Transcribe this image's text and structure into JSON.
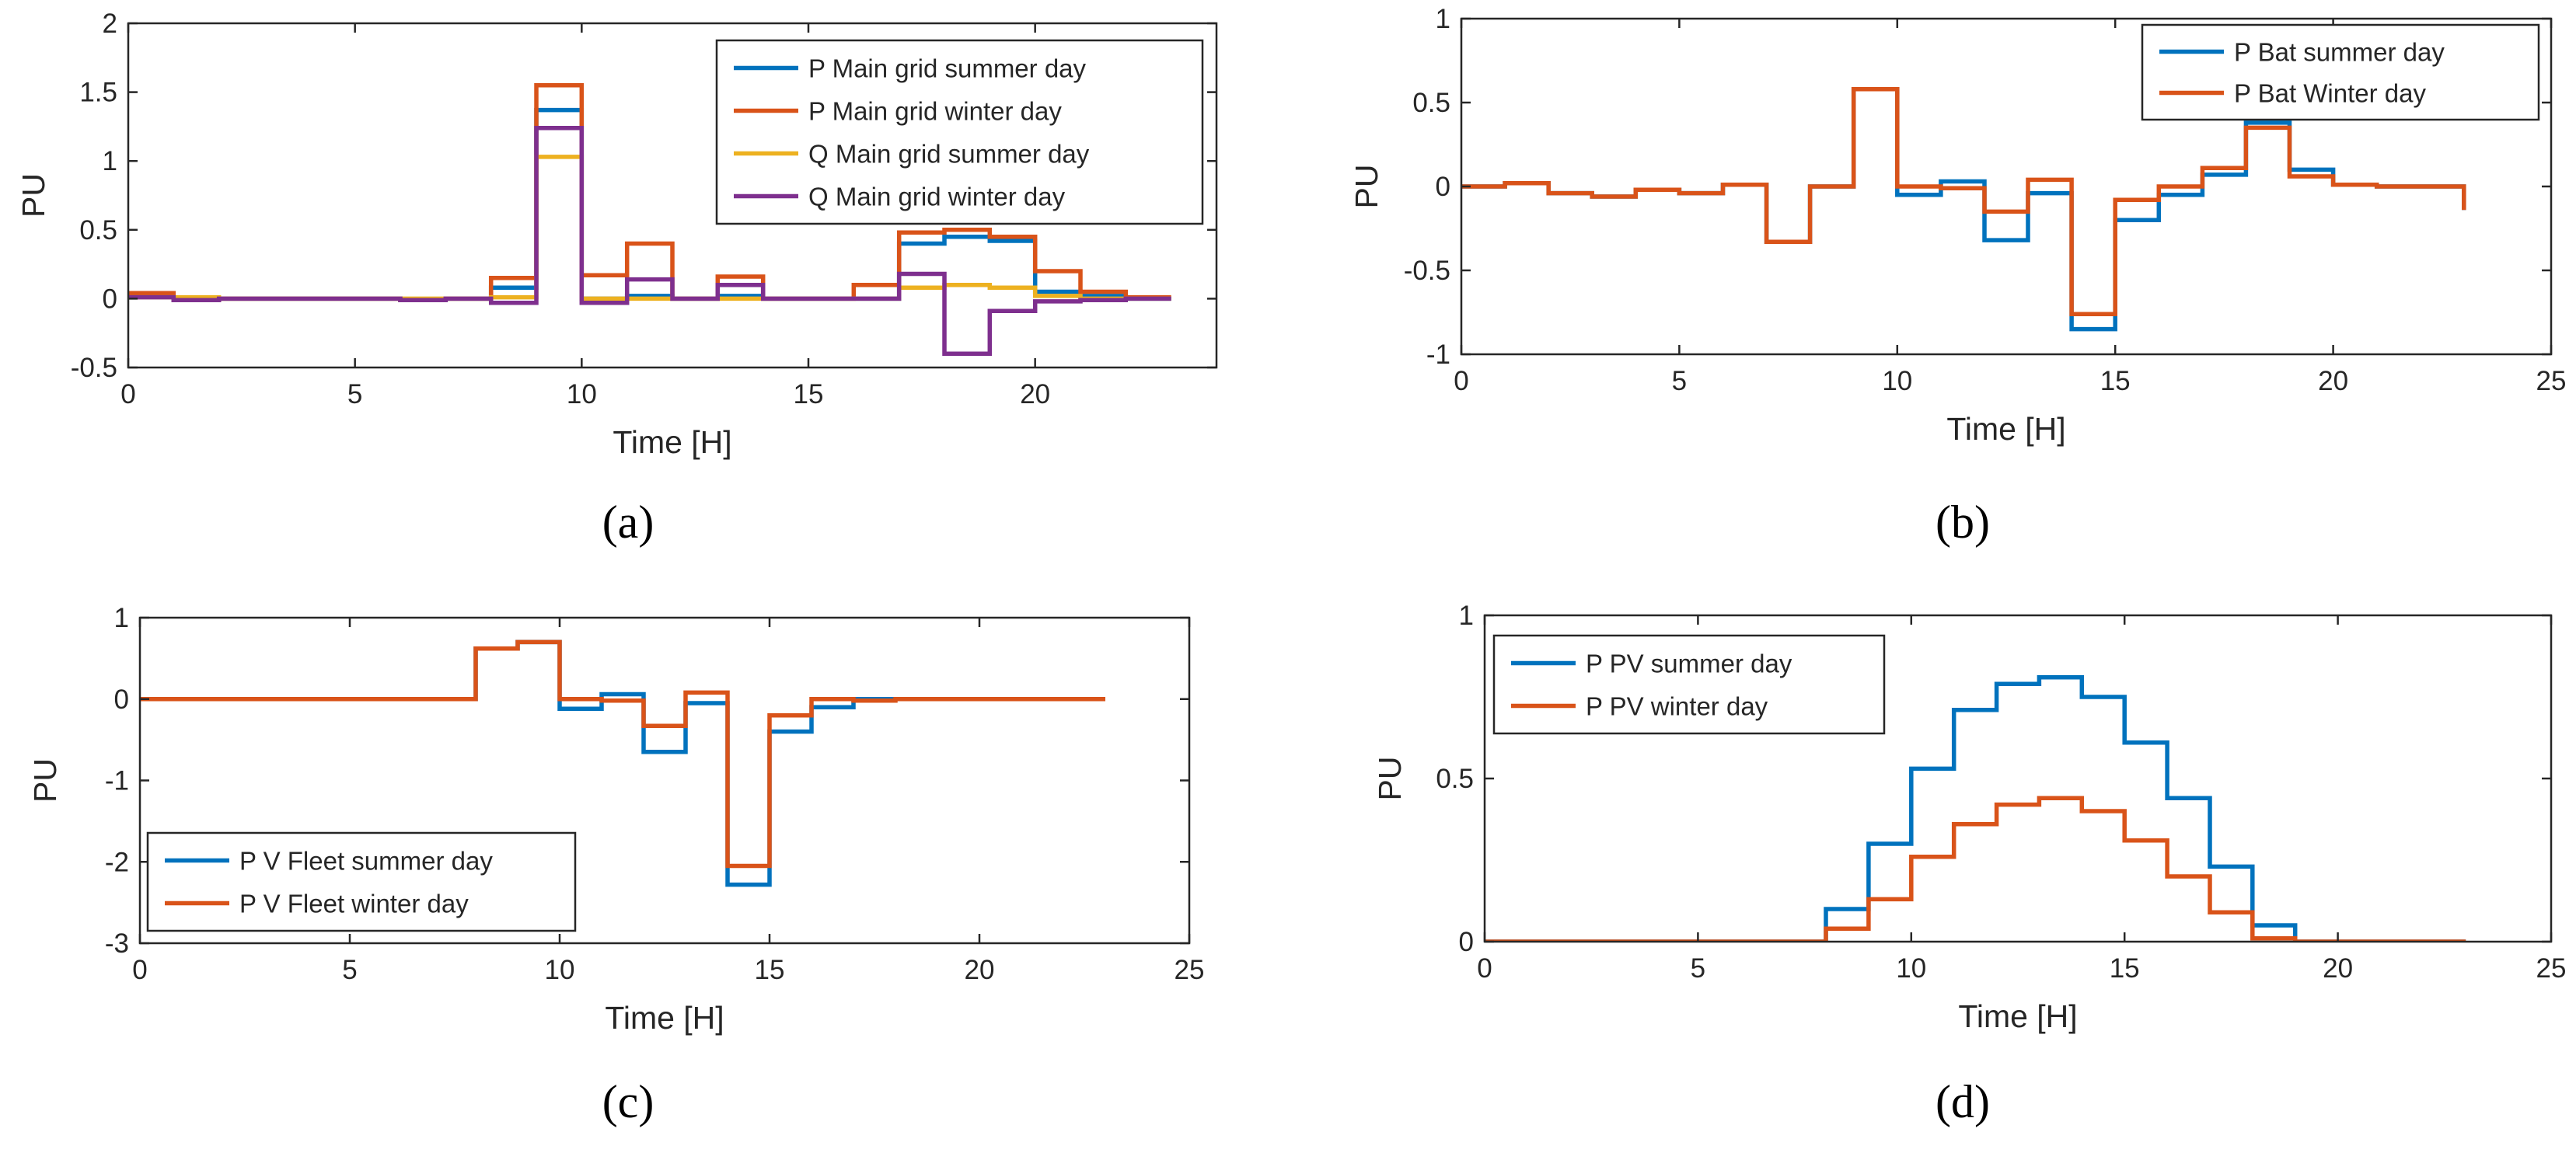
{
  "chart_data": [
    {
      "id": "a",
      "type": "line",
      "panel_label": "(a)",
      "title": "",
      "xlabel": "Time [H]",
      "ylabel": "PU",
      "xlim": [
        0,
        24
      ],
      "ylim": [
        -0.5,
        2
      ],
      "xticks": [
        0,
        5,
        10,
        15,
        20
      ],
      "xtick_labels": [
        "0",
        "5",
        "10",
        "15",
        "20"
      ],
      "yticks": [
        -0.5,
        0,
        0.5,
        1,
        1.5,
        2
      ],
      "ytick_labels": [
        "-0.5",
        "0",
        "0.5",
        "1",
        "1.5",
        "2"
      ],
      "grid": false,
      "legend_position": "top-right",
      "x": [
        0,
        1,
        2,
        3,
        4,
        5,
        6,
        7,
        8,
        9,
        10,
        11,
        12,
        13,
        14,
        15,
        16,
        17,
        18,
        19,
        20,
        21,
        22,
        23
      ],
      "series": [
        {
          "name": "P Main grid summer day",
          "color": "#0072BD",
          "values": [
            0.02,
            -0.01,
            0,
            0,
            0,
            0,
            -0.01,
            0,
            0.08,
            1.37,
            0,
            0.02,
            0,
            0.02,
            0,
            0,
            0,
            0.4,
            0.45,
            0.42,
            0.05,
            0.02,
            0,
            0
          ]
        },
        {
          "name": "P Main grid winter day",
          "color": "#D95319",
          "values": [
            0.04,
            -0.01,
            0,
            0,
            0,
            0,
            -0.01,
            0,
            0.15,
            1.55,
            0.17,
            0.4,
            0,
            0.16,
            0,
            0,
            0.1,
            0.48,
            0.5,
            0.45,
            0.2,
            0.05,
            0.01,
            0.01
          ]
        },
        {
          "name": "Q Main grid summer day",
          "color": "#EDB120",
          "values": [
            0.01,
            0.01,
            0,
            0,
            0,
            0,
            0,
            0,
            0.01,
            1.03,
            0,
            0,
            0,
            0,
            0,
            0,
            0,
            0.08,
            0.1,
            0.08,
            0.02,
            0,
            0,
            0
          ]
        },
        {
          "name": "Q Main grid winter day",
          "color": "#7E2F8E",
          "values": [
            0.01,
            -0.01,
            0,
            0,
            0,
            0,
            -0.01,
            0,
            -0.03,
            1.24,
            -0.03,
            0.14,
            0,
            0.1,
            0,
            0,
            0,
            0.18,
            -0.4,
            -0.09,
            -0.02,
            -0.01,
            0,
            0
          ]
        }
      ]
    },
    {
      "id": "b",
      "type": "line",
      "panel_label": "(b)",
      "title": "",
      "xlabel": "Time [H]",
      "ylabel": "PU",
      "xlim": [
        0,
        25
      ],
      "ylim": [
        -1,
        1
      ],
      "xticks": [
        0,
        5,
        10,
        15,
        20,
        25
      ],
      "xtick_labels": [
        "0",
        "5",
        "10",
        "15",
        "20",
        "25"
      ],
      "yticks": [
        -1,
        -0.5,
        0,
        0.5,
        1
      ],
      "ytick_labels": [
        "-1",
        "-0.5",
        "0",
        "0.5",
        "1"
      ],
      "grid": false,
      "legend_position": "top-right",
      "x": [
        0,
        1,
        2,
        3,
        4,
        5,
        6,
        7,
        8,
        9,
        10,
        11,
        12,
        13,
        14,
        15,
        16,
        17,
        18,
        19,
        20,
        21,
        22,
        23
      ],
      "series": [
        {
          "name": "P Bat summer day",
          "color": "#0072BD",
          "values": [
            0,
            0.02,
            -0.04,
            -0.06,
            -0.02,
            -0.04,
            0.01,
            -0.33,
            0,
            0.58,
            -0.05,
            0.03,
            -0.32,
            -0.04,
            -0.85,
            -0.2,
            -0.05,
            0.07,
            0.38,
            0.1,
            0.01,
            0,
            0,
            -0.14
          ]
        },
        {
          "name": "P Bat Winter day",
          "color": "#D95319",
          "values": [
            0,
            0.02,
            -0.04,
            -0.06,
            -0.02,
            -0.04,
            0.01,
            -0.33,
            0,
            0.58,
            0,
            -0.01,
            -0.15,
            0.04,
            -0.76,
            -0.08,
            0,
            0.11,
            0.35,
            0.06,
            0.01,
            0,
            0,
            -0.14
          ]
        }
      ]
    },
    {
      "id": "c",
      "type": "line",
      "panel_label": "(c)",
      "title": "",
      "xlabel": "Time [H]",
      "ylabel": "PU",
      "xlim": [
        0,
        25
      ],
      "ylim": [
        -3,
        1
      ],
      "xticks": [
        0,
        5,
        10,
        15,
        20,
        25
      ],
      "xtick_labels": [
        "0",
        "5",
        "10",
        "15",
        "20",
        "25"
      ],
      "yticks": [
        -3,
        -2,
        -1,
        0,
        1
      ],
      "ytick_labels": [
        "-3",
        "-2",
        "-1",
        "0",
        "1"
      ],
      "grid": false,
      "legend_position": "bottom-left",
      "x": [
        0,
        1,
        2,
        3,
        4,
        5,
        6,
        7,
        8,
        9,
        10,
        11,
        12,
        13,
        14,
        15,
        16,
        17,
        18,
        19,
        20,
        21,
        22,
        23
      ],
      "series": [
        {
          "name": "P V Fleet summer day",
          "color": "#0072BD",
          "values": [
            0,
            0,
            0,
            0,
            0,
            0,
            0,
            0,
            0.62,
            0.7,
            -0.12,
            0.06,
            -0.65,
            -0.05,
            -2.28,
            -0.4,
            -0.1,
            0,
            0,
            0,
            0,
            0,
            0,
            0
          ]
        },
        {
          "name": "P V Fleet  winter day",
          "color": "#D95319",
          "values": [
            0,
            0,
            0,
            0,
            0,
            0,
            0,
            0,
            0.62,
            0.7,
            0,
            -0.02,
            -0.33,
            0.08,
            -2.05,
            -0.2,
            0,
            -0.02,
            0,
            0,
            0,
            0,
            0,
            0
          ]
        }
      ]
    },
    {
      "id": "d",
      "type": "line",
      "panel_label": "(d)",
      "title": "",
      "xlabel": "Time [H]",
      "ylabel": "PU",
      "xlim": [
        0,
        25
      ],
      "ylim": [
        0,
        1
      ],
      "xticks": [
        0,
        5,
        10,
        15,
        20,
        25
      ],
      "xtick_labels": [
        "0",
        "5",
        "10",
        "15",
        "20",
        "25"
      ],
      "yticks": [
        0,
        0.5,
        1
      ],
      "ytick_labels": [
        "0",
        "0.5",
        "1"
      ],
      "grid": false,
      "legend_position": "top-left",
      "x": [
        0,
        1,
        2,
        3,
        4,
        5,
        6,
        7,
        8,
        9,
        10,
        11,
        12,
        13,
        14,
        15,
        16,
        17,
        18,
        19,
        20,
        21,
        22,
        23
      ],
      "series": [
        {
          "name": "P PV summer day",
          "color": "#0072BD",
          "values": [
            0,
            0,
            0,
            0,
            0,
            0,
            0,
            0,
            0.1,
            0.3,
            0.53,
            0.71,
            0.79,
            0.81,
            0.75,
            0.61,
            0.44,
            0.23,
            0.05,
            0,
            0,
            0,
            0,
            0
          ]
        },
        {
          "name": "P PV winter day",
          "color": "#D95319",
          "values": [
            0,
            0,
            0,
            0,
            0,
            0,
            0,
            0,
            0.04,
            0.13,
            0.26,
            0.36,
            0.42,
            0.44,
            0.4,
            0.31,
            0.2,
            0.09,
            0.01,
            0,
            0,
            0,
            0,
            0
          ]
        }
      ]
    }
  ]
}
